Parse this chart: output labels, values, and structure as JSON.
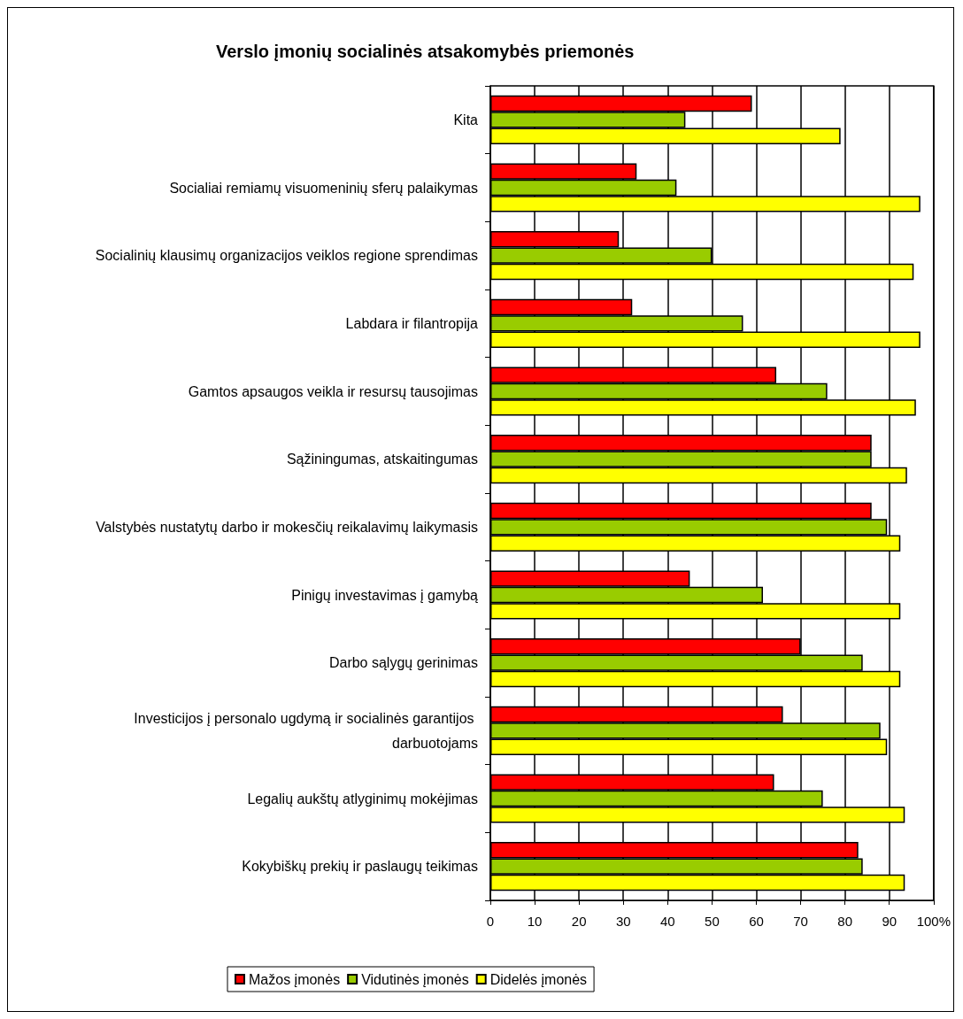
{
  "chart_data": {
    "type": "bar",
    "orientation": "horizontal",
    "title": "Verslo įmonių socialinės atsakomybės priemonės",
    "categories": [
      "Kita",
      "Socialiai remiamų visuomeninių sferų palaikymas",
      "Socialinių klausimų organizacijos veiklos regione sprendimas",
      "Labdara ir filantropija",
      "Gamtos apsaugos veikla ir resursų tausojimas",
      "Sąžiningumas, atskaitingumas",
      "Valstybės nustatytų darbo ir mokesčių reikalavimų laikymasis",
      "Pinigų investavimas į gamybą",
      "Darbo sąlygų gerinimas",
      "Investicijos į personalo ugdymą ir socialinės garantijos darbuotojams",
      "Legalių aukštų atlyginimų mokėjimas",
      "Kokybiškų prekių ir paslaugų teikimas"
    ],
    "series": [
      {
        "name": "Mažos įmonės",
        "color": "#ff0000",
        "values": [
          59,
          33,
          29,
          32,
          64.5,
          86,
          86,
          45,
          70,
          66,
          64,
          83
        ]
      },
      {
        "name": "Vidutinės įmonės",
        "color": "#99cc00",
        "values": [
          44,
          42,
          50,
          57,
          76,
          86,
          89.5,
          61.5,
          84,
          88,
          75,
          84
        ]
      },
      {
        "name": "Didelės įmonės",
        "color": "#ffff00",
        "values": [
          79,
          97,
          95.5,
          97,
          96,
          94,
          92.5,
          92.5,
          92.5,
          89.5,
          93.5,
          93.5
        ]
      }
    ],
    "xlim": [
      0,
      100
    ],
    "xticks": [
      0,
      10,
      20,
      30,
      40,
      50,
      60,
      70,
      80,
      90,
      {
        "value": 100,
        "label": "100%"
      }
    ],
    "grid": "x",
    "legend": "bottom"
  }
}
